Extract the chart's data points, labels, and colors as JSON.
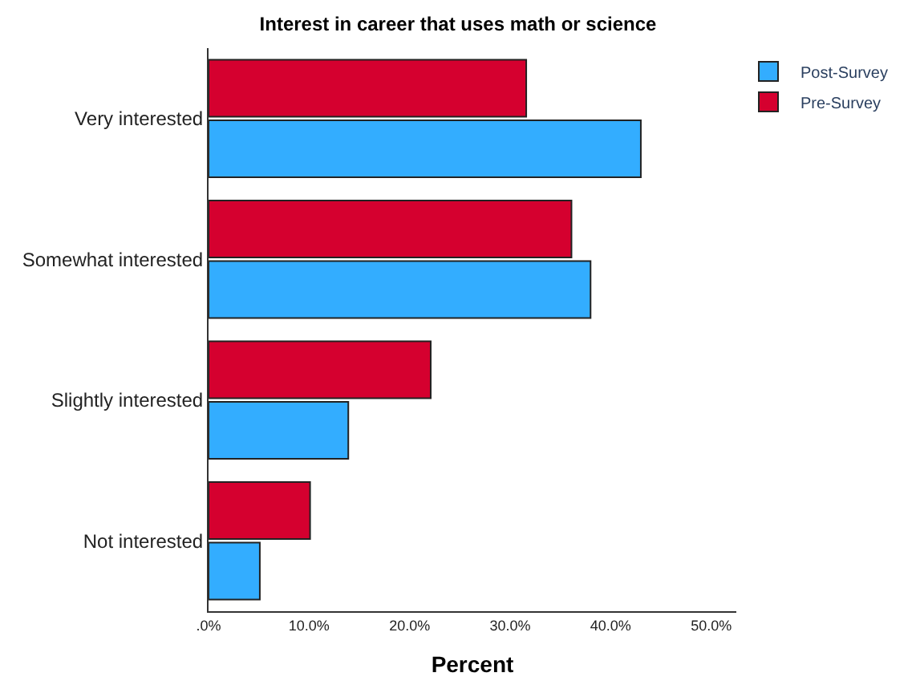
{
  "chart_data": {
    "type": "bar",
    "orientation": "horizontal",
    "title": "Interest in career that uses math or science",
    "xlabel": "Percent",
    "categories": [
      "Very interested",
      "Somewhat interested",
      "Slightly interested",
      "Not interested"
    ],
    "series": [
      {
        "name": "Post-Survey",
        "color": "#33adff",
        "values": [
          43.0,
          38.0,
          13.9,
          5.1
        ]
      },
      {
        "name": "Pre-Survey",
        "color": "#d5002f",
        "values": [
          31.6,
          36.1,
          22.1,
          10.1
        ]
      }
    ],
    "xlim": [
      0,
      52.5
    ],
    "xticks": [
      {
        "value": 0,
        "label": ".0%"
      },
      {
        "value": 10,
        "label": "10.0%"
      },
      {
        "value": 20,
        "label": "20.0%"
      },
      {
        "value": 30,
        "label": "30.0%"
      },
      {
        "value": 40,
        "label": "40.0%"
      },
      {
        "value": 50,
        "label": "50.0%"
      }
    ],
    "legend": "top right"
  }
}
